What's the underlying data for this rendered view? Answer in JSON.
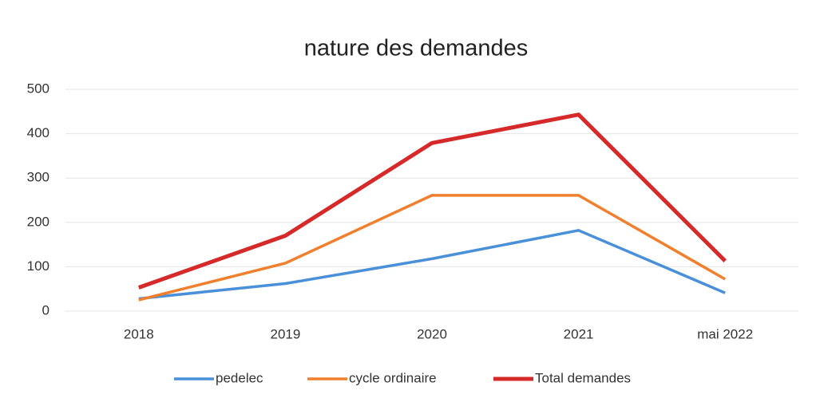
{
  "chart_data": {
    "type": "line",
    "title": "nature des demandes",
    "categories": [
      "2018",
      "2019",
      "2020",
      "2021",
      "mai 2022"
    ],
    "series": [
      {
        "name": "pedelec",
        "color": "#4a90d9",
        "values": [
          28,
          62,
          118,
          182,
          41
        ]
      },
      {
        "name": "cycle ordinaire",
        "color": "#f07f2e",
        "values": [
          25,
          108,
          261,
          261,
          72
        ]
      },
      {
        "name": "Total demandes",
        "color": "#d62a2a",
        "values": [
          53,
          170,
          379,
          443,
          113
        ]
      }
    ],
    "ylim": [
      0,
      500
    ],
    "yticks": [
      0,
      100,
      200,
      300,
      400,
      500
    ],
    "grid": true,
    "legend": "bottom"
  }
}
